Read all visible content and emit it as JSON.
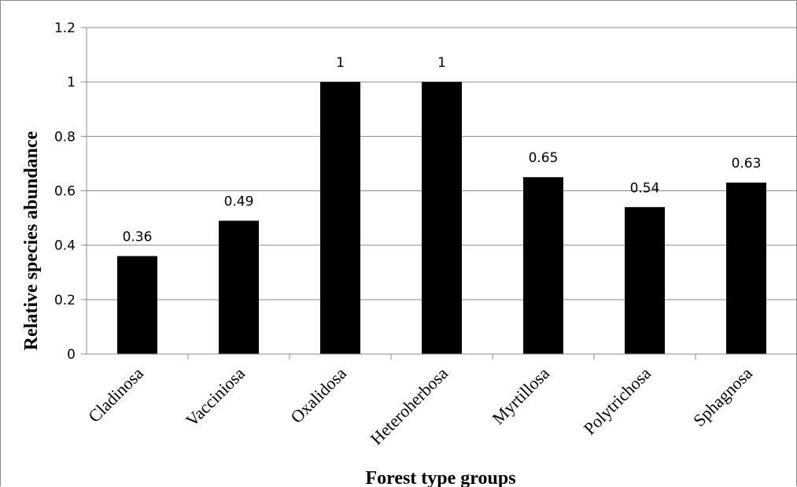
{
  "chart_data": {
    "type": "bar",
    "title": "",
    "xlabel": "Forest type groups",
    "ylabel": "Relative species abundance",
    "categories": [
      "Cladinosa",
      "Vacciniosa",
      "Oxalidosa",
      "Heteroherbosa",
      "Myrtillosa",
      "Polytrichosa",
      "Sphagnosa"
    ],
    "values": [
      0.36,
      0.49,
      1,
      1,
      0.65,
      0.54,
      0.63
    ],
    "data_labels": [
      "0.36",
      "0.49",
      "1",
      "1",
      "0.65",
      "0.54",
      "0.63"
    ],
    "ylim": [
      0,
      1.2
    ],
    "yticks": [
      "0",
      "0.2",
      "0.4",
      "0.6",
      "0.8",
      "1",
      "1.2"
    ],
    "grid": true,
    "bar_color": "#000000",
    "grid_color": "#8c8c8c"
  }
}
